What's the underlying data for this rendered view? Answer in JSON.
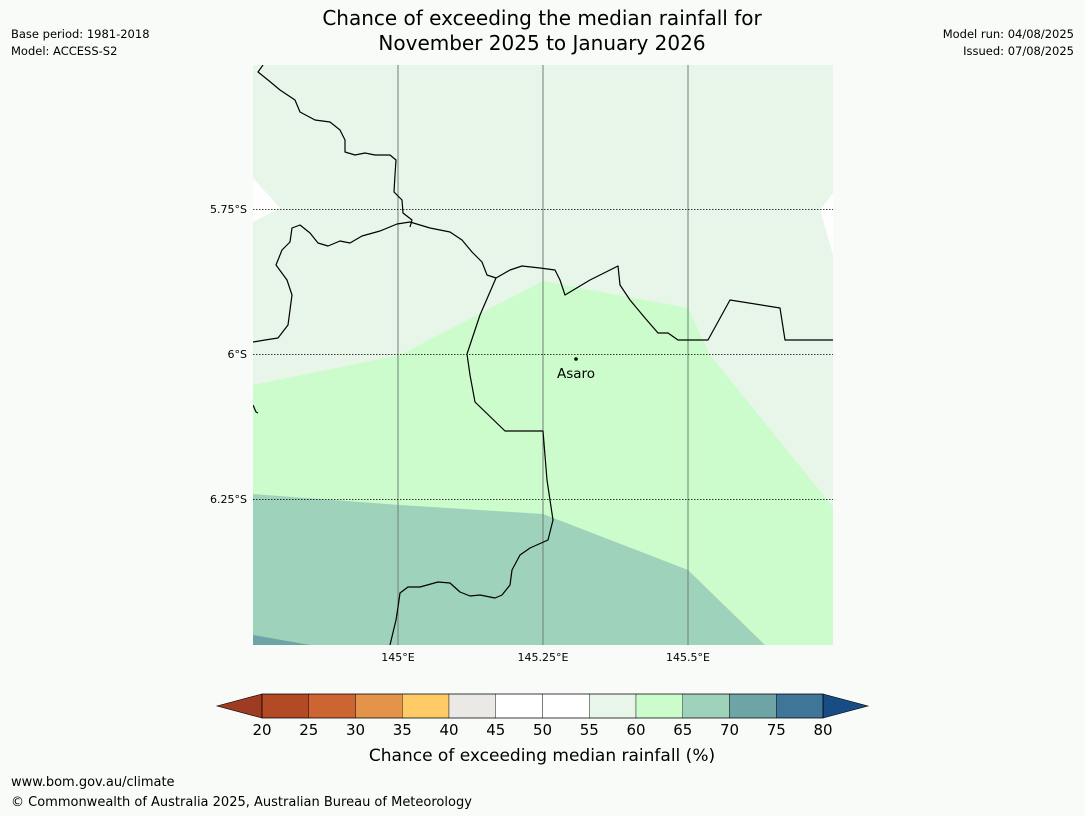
{
  "header": {
    "base_period": "Base period: 1981-2018",
    "model": "Model: ACCESS-S2",
    "title_line1": "Chance of exceeding the median rainfall for",
    "title_line2": "November 2025 to January 2026",
    "model_run": "Model run: 04/08/2025",
    "issued": "Issued: 07/08/2025"
  },
  "map": {
    "lat_labels": [
      "5.75°S",
      "6°S",
      "6.25°S"
    ],
    "lon_labels": [
      "145°E",
      "145.25°E",
      "145.5°E"
    ],
    "place": "Asaro",
    "zones": [
      {
        "name": "55-60",
        "color": "#e8f5e9"
      },
      {
        "name": "60-65",
        "color": "#ccfccc"
      },
      {
        "name": "65-70",
        "color": "#9fd2bb"
      },
      {
        "name": "70-75",
        "color": "#6fa4a6"
      }
    ]
  },
  "colorbar": {
    "ticks": [
      "20",
      "25",
      "30",
      "35",
      "40",
      "45",
      "50",
      "55",
      "60",
      "65",
      "70",
      "75",
      "80"
    ],
    "colors": [
      "#9e3b23",
      "#b34a26",
      "#cc6532",
      "#e4944a",
      "#fecb67",
      "#ebe9e6",
      "#ffffff",
      "#ffffff",
      "#e8f5e9",
      "#ccfccc",
      "#9fd2bb",
      "#6fa4a6",
      "#3e7599",
      "#174c84"
    ],
    "label": "Chance of exceeding median rainfall (%)"
  },
  "footer": {
    "url": "www.bom.gov.au/climate",
    "copyright": "© Commonwealth of Australia 2025, Australian Bureau of Meteorology"
  }
}
